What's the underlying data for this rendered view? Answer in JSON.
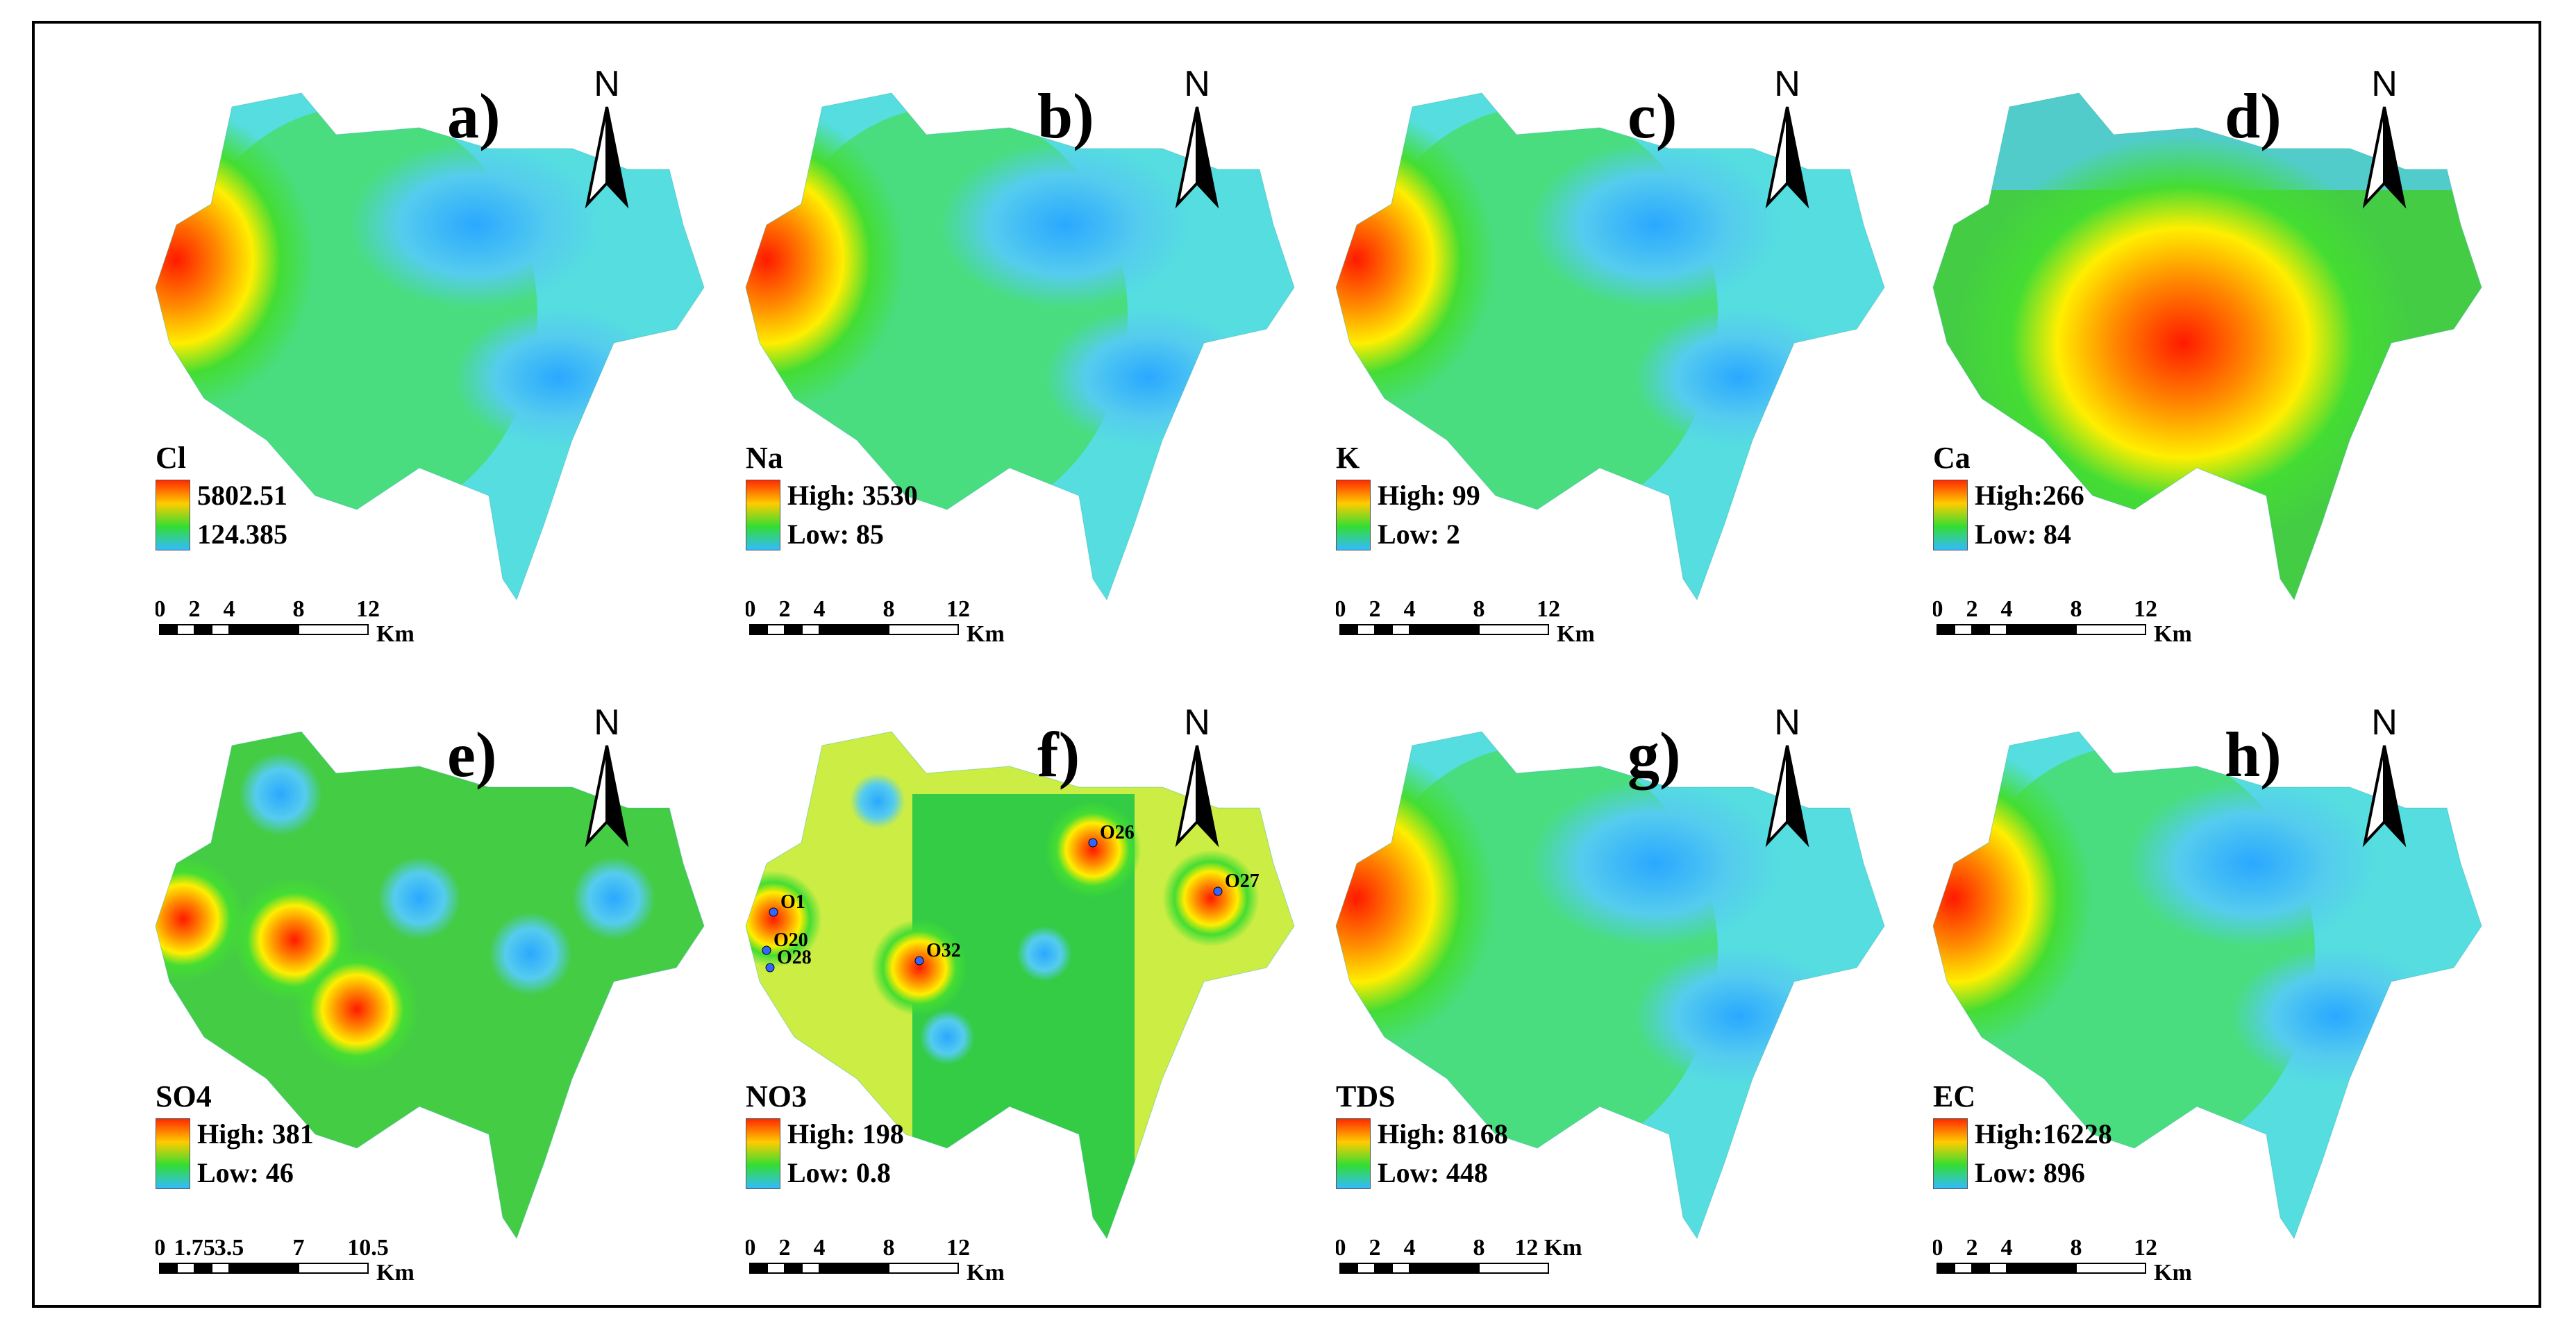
{
  "panels": [
    {
      "id": "a",
      "label": "a)",
      "north": "N",
      "legend": {
        "title": "Cl",
        "high": "5802.51",
        "low": "124.385"
      },
      "scale": {
        "ticks": [
          "0",
          "2",
          "4",
          "8",
          "12"
        ],
        "unit": "Km"
      },
      "hot": "west"
    },
    {
      "id": "b",
      "label": "b)",
      "north": "N",
      "legend": {
        "title": "Na",
        "high": "High: 3530",
        "low": "Low: 85"
      },
      "scale": {
        "ticks": [
          "0",
          "2",
          "4",
          "8",
          "12"
        ],
        "unit": "Km"
      },
      "hot": "west"
    },
    {
      "id": "c",
      "label": "c)",
      "north": "N",
      "legend": {
        "title": "K",
        "high": "High: 99",
        "low": "Low: 2"
      },
      "scale": {
        "ticks": [
          "0",
          "2",
          "4",
          "8",
          "12"
        ],
        "unit": "Km"
      },
      "hot": "west"
    },
    {
      "id": "d",
      "label": "d)",
      "north": "N",
      "legend": {
        "title": "Ca",
        "high": "High:266",
        "low": "Low: 84"
      },
      "scale": {
        "ticks": [
          "0",
          "2",
          "4",
          "8",
          "12"
        ],
        "unit": "Km"
      },
      "hot": "center"
    },
    {
      "id": "e",
      "label": "e)",
      "north": "N",
      "legend": {
        "title": "SO4",
        "high": "High: 381",
        "low": "Low: 46"
      },
      "scale": {
        "ticks": [
          "0",
          "1.75",
          "3.5",
          "7",
          "10.5"
        ],
        "unit": "Km"
      },
      "hot": "spots"
    },
    {
      "id": "f",
      "label": "f)",
      "north": "N",
      "legend": {
        "title": "NO3",
        "high": "High: 198",
        "low": "Low: 0.8"
      },
      "scale": {
        "ticks": [
          "0",
          "2",
          "4",
          "8",
          "12"
        ],
        "unit": "Km"
      },
      "hot": "nitrate",
      "wells": [
        "O1",
        "O20",
        "O28",
        "O32",
        "O26",
        "O27"
      ]
    },
    {
      "id": "g",
      "label": "g)",
      "north": "N",
      "legend": {
        "title": "TDS",
        "high": "High: 8168",
        "low": "Low: 448"
      },
      "scale": {
        "ticks": [
          "0",
          "2",
          "4",
          "8",
          "12 Km"
        ],
        "unit": ""
      },
      "hot": "west"
    },
    {
      "id": "h",
      "label": "h)",
      "north": "N",
      "legend": {
        "title": "EC",
        "high": "High:16228",
        "low": "Low: 896"
      },
      "scale": {
        "ticks": [
          "0",
          "2",
          "4",
          "8",
          "12"
        ],
        "unit": "Km"
      },
      "hot": "west"
    }
  ],
  "colors": {
    "high": "#ff0000",
    "mid": "#33cc33",
    "low": "#33bbff",
    "ramp": [
      "#ff2a00",
      "#ffcc00",
      "#33dd33",
      "#33bbff"
    ]
  }
}
